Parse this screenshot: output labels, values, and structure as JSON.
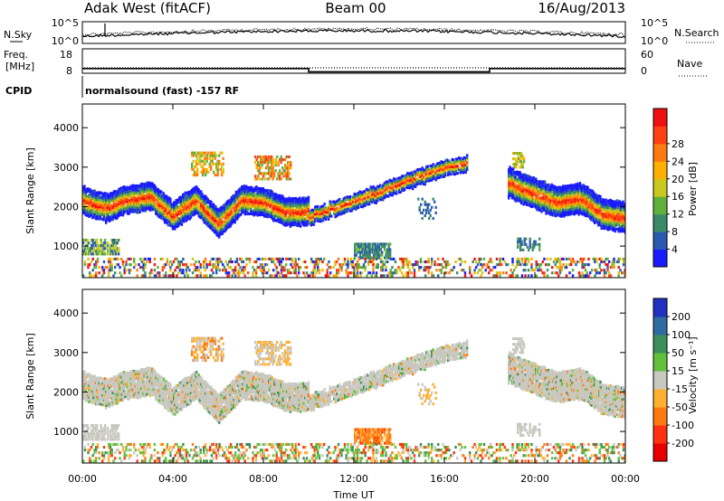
{
  "header": {
    "station": "Adak West (fitACF)",
    "beam": "Beam 00",
    "date": "16/Aug/2013"
  },
  "noise_panel": {
    "left_label": "N.Sky",
    "right_label": "N.Search",
    "left_ticks": [
      "10^5",
      "10^0"
    ],
    "right_ticks": [
      "10^5",
      "10^0"
    ]
  },
  "freq_panel": {
    "left_label_line1": "Freq.",
    "left_label_line2": "[MHz]",
    "right_label": "Nave",
    "left_ticks": [
      "18",
      "8"
    ],
    "right_ticks": [
      "60",
      "0"
    ],
    "freq_steps": [
      {
        "from_hr": 0,
        "to_hr": 10,
        "mhz": 12
      },
      {
        "from_hr": 10,
        "to_hr": 18,
        "mhz": 10
      },
      {
        "from_hr": 18,
        "to_hr": 24,
        "mhz": 12
      }
    ]
  },
  "cpid": {
    "label": "CPID",
    "text": "normalsound (fast) -157 RF"
  },
  "x_axis": {
    "label": "Time UT",
    "ticks": [
      "00:00",
      "04:00",
      "08:00",
      "12:00",
      "16:00",
      "20:00",
      "00:00"
    ],
    "tick_hours": [
      0,
      4,
      8,
      12,
      16,
      20,
      24
    ]
  },
  "power_panel": {
    "ylabel": "Slant Range [km]",
    "yticks": [
      "1000",
      "2000",
      "3000",
      "4000"
    ],
    "colorbar_label": "Power [dB]",
    "colorbar_ticks": [
      "4",
      "8",
      "12",
      "16",
      "20",
      "24",
      "28"
    ],
    "colors": [
      "#1a1aff",
      "#2a5ab0",
      "#3a8a6a",
      "#5fb03c",
      "#c8c81e",
      "#ffb000",
      "#ff7a10",
      "#ff4010",
      "#ee1010"
    ]
  },
  "velocity_panel": {
    "ylabel": "Slant Range [km]",
    "yticks": [
      "1000",
      "2000",
      "3000",
      "4000"
    ],
    "colorbar_label": "Velocity [m s⁻¹]",
    "colorbar_ticks": [
      "200",
      "100",
      "50",
      "15",
      "-15",
      "-50",
      "-100",
      "-200"
    ],
    "colors": [
      "#2030c0",
      "#2f6aa0",
      "#3c8f5a",
      "#62c03a",
      "#c8c8c0",
      "#ffb030",
      "#ff7a10",
      "#ff3010",
      "#e80000"
    ]
  },
  "chart_data": {
    "type": "heatmap",
    "x_range_hours": [
      0,
      24
    ],
    "y_range_km": [
      200,
      4600
    ],
    "features": [
      {
        "name": "main band",
        "hours": [
          0,
          1,
          2,
          3,
          4,
          5,
          6,
          7,
          8,
          9,
          10
        ],
        "center_km": [
          2250,
          2050,
          2250,
          2350,
          1850,
          2250,
          1650,
          2250,
          2200,
          1950,
          1950
        ]
      },
      {
        "name": "upper arc",
        "hours": [
          10,
          11,
          12,
          13,
          14,
          15,
          16,
          17
        ],
        "center_km": [
          1800,
          2000,
          2200,
          2400,
          2650,
          2850,
          3050,
          3150
        ]
      },
      {
        "name": "evening band",
        "hours": [
          18.8,
          20,
          21,
          22,
          23,
          24
        ],
        "center_km": [
          2700,
          2400,
          2200,
          2300,
          1900,
          1800
        ]
      }
    ]
  }
}
